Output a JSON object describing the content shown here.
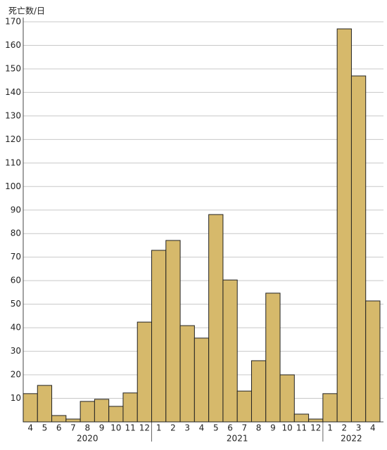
{
  "chart_data": {
    "type": "bar",
    "y_label": "死亡数/日",
    "color": "#d6b96b",
    "groups": [
      {
        "name": "2020",
        "categories": [
          "4",
          "5",
          "6",
          "7",
          "8",
          "9",
          "10",
          "11",
          "12"
        ],
        "values": [
          12,
          15.5,
          2.7,
          1.2,
          8.7,
          9.6,
          6.6,
          12.3,
          42.4
        ]
      },
      {
        "name": "2021",
        "categories": [
          "1",
          "2",
          "3",
          "4",
          "5",
          "6",
          "7",
          "8",
          "9",
          "10",
          "11",
          "12"
        ],
        "values": [
          72.9,
          77.1,
          40.9,
          35.6,
          88.1,
          60.3,
          13.1,
          26,
          54.7,
          20,
          3.3,
          1.2
        ]
      },
      {
        "name": "2022",
        "categories": [
          "1",
          "2",
          "3",
          "4"
        ],
        "values": [
          12,
          167,
          147,
          51.4
        ]
      }
    ],
    "ylim": [
      0,
      170
    ],
    "yticks": [
      10,
      20,
      30,
      40,
      50,
      60,
      70,
      80,
      90,
      100,
      110,
      120,
      130,
      140,
      150,
      160,
      170
    ],
    "grid": true
  }
}
